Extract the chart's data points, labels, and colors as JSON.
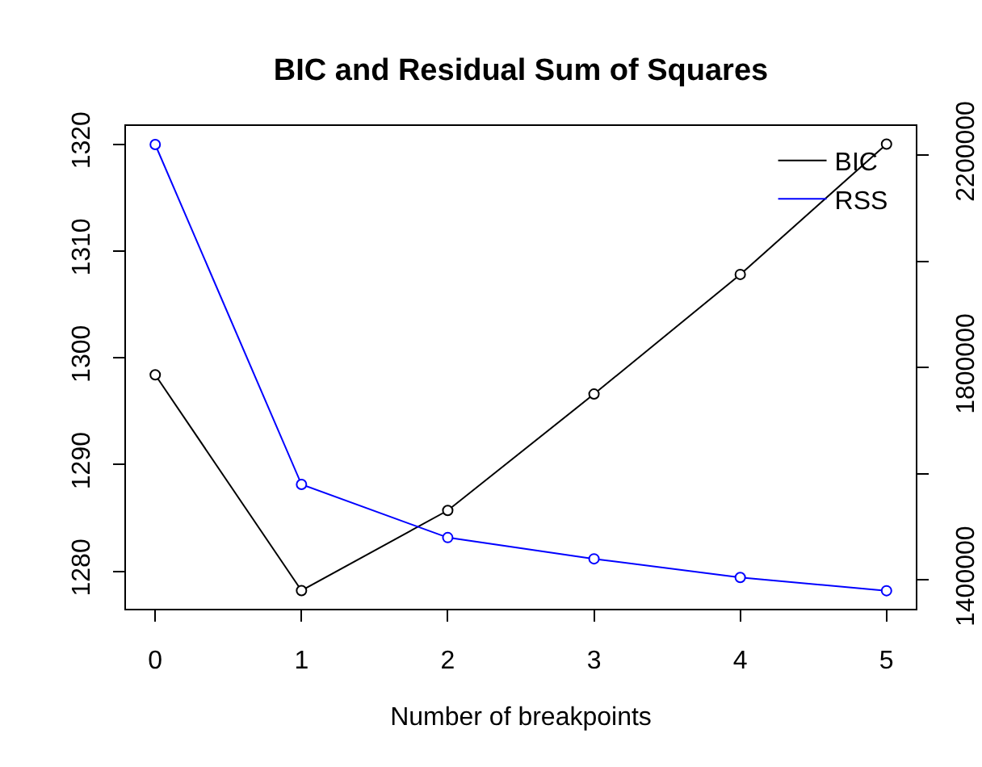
{
  "chart_data": {
    "type": "line",
    "title": "BIC and Residual Sum of Squares",
    "xlabel": "Number of breakpoints",
    "x": [
      0,
      1,
      2,
      3,
      4,
      5
    ],
    "series": [
      {
        "name": "BIC",
        "color": "#000000",
        "values": [
          1298.4,
          1278.2,
          1285.7,
          1296.6,
          1307.8,
          1320.0
        ]
      },
      {
        "name": "RSS",
        "color": "#0000ff",
        "axis": "y2",
        "values": [
          2220000,
          1580000,
          1480000,
          1440000,
          1405000,
          1380000
        ]
      }
    ],
    "xlim": [
      -0.2,
      5.2
    ],
    "xticks": [
      0,
      1,
      2,
      3,
      4,
      5
    ],
    "ylim": [
      1276.5,
      1321.7
    ],
    "yticks": [
      1280,
      1290,
      1300,
      1310,
      1320
    ],
    "y2lim": [
      1346000,
      2255000
    ],
    "y2ticks": [
      1400000,
      {
        "value": 1600000,
        "label": null
      },
      1800000,
      {
        "value": 2000000,
        "label": null
      },
      2200000
    ],
    "legend": "top right",
    "marker": "circle",
    "line_style": "solid"
  }
}
